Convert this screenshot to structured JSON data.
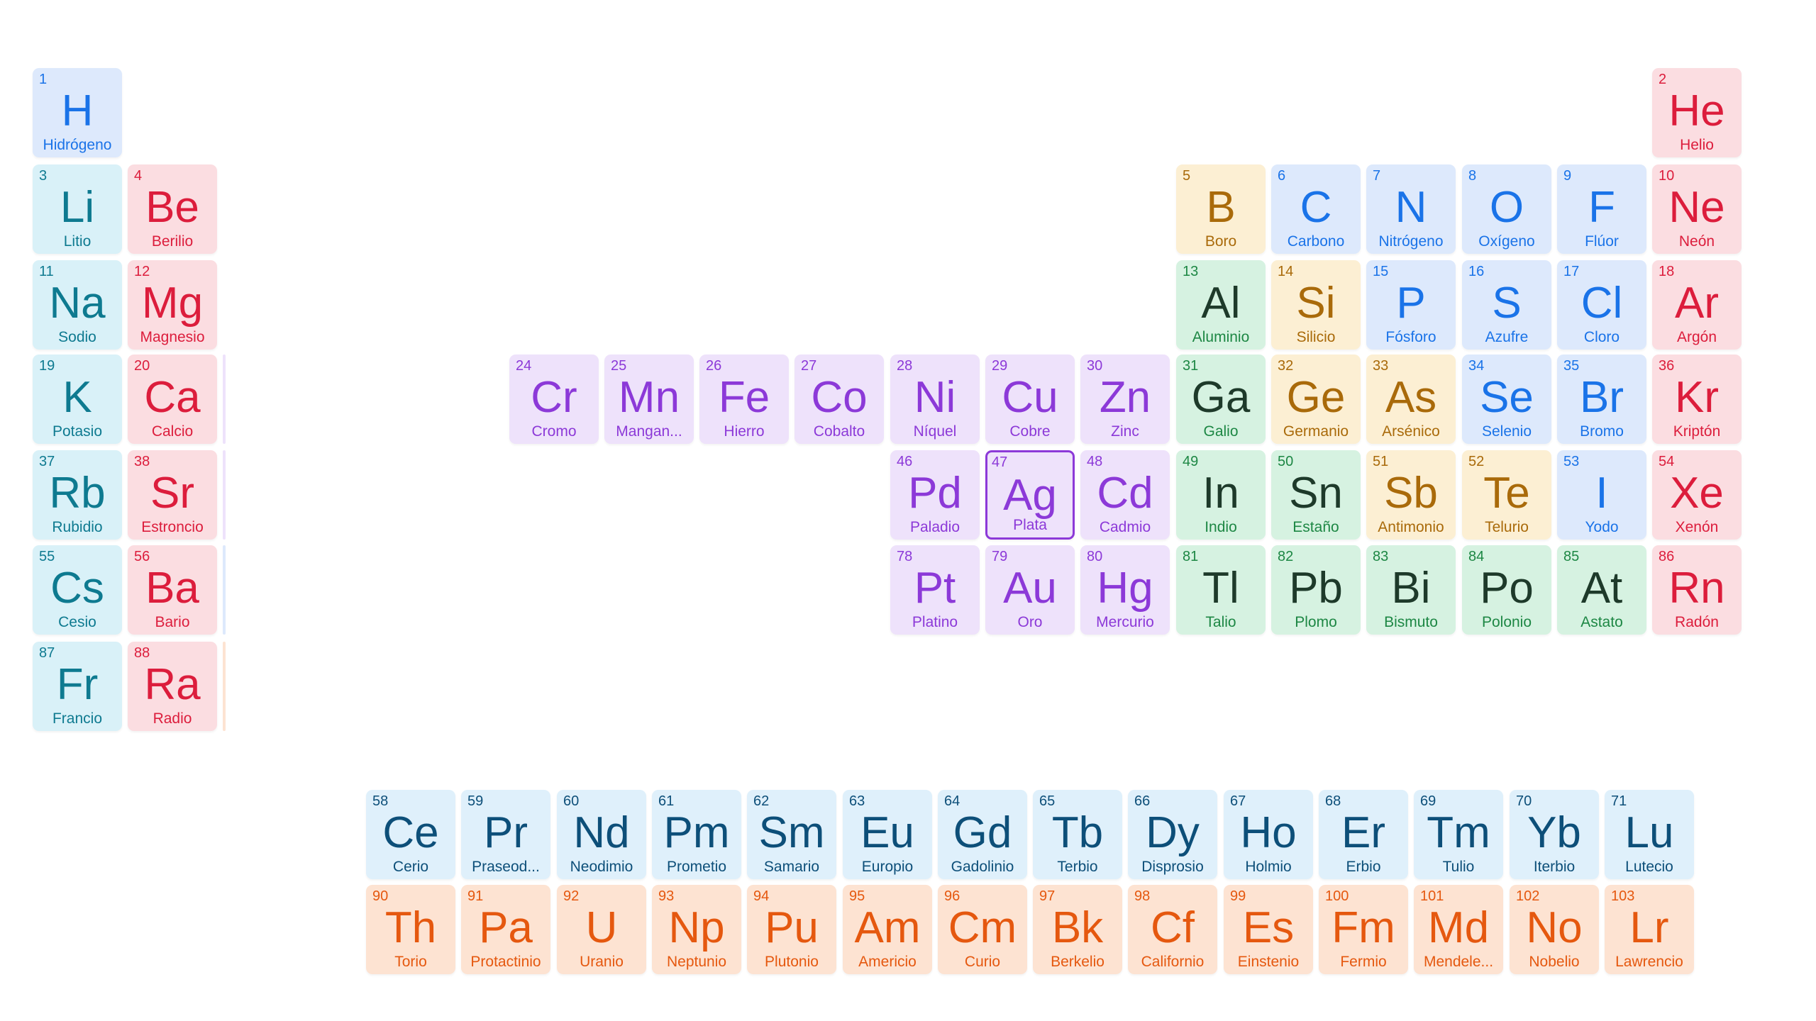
{
  "category_colors": {
    "hydrogen": "#1a73e8",
    "alkali": "#0e7a90",
    "alkaline": "#dc1d3c",
    "transition": "#8c39d8",
    "post": "#1d8744",
    "metalloid": "#a96a0a",
    "nonmetal": "#1a73e8",
    "noble": "#dc1d3c",
    "lanthanide": "#0d4f79",
    "actinide": "#e5580f"
  },
  "selected_element": "Ag",
  "elements": [
    {
      "num": "1",
      "sym": "H",
      "name": "Hidrógeno",
      "cat": "hydrogen",
      "col": 1,
      "row": 1
    },
    {
      "num": "2",
      "sym": "He",
      "name": "Helio",
      "cat": "noble",
      "col": 18,
      "row": 1
    },
    {
      "num": "3",
      "sym": "Li",
      "name": "Litio",
      "cat": "alkali",
      "col": 1,
      "row": 2
    },
    {
      "num": "4",
      "sym": "Be",
      "name": "Berilio",
      "cat": "alkaline",
      "col": 2,
      "row": 2
    },
    {
      "num": "5",
      "sym": "B",
      "name": "Boro",
      "cat": "metalloid",
      "col": 13,
      "row": 2
    },
    {
      "num": "6",
      "sym": "C",
      "name": "Carbono",
      "cat": "nonmetal",
      "col": 14,
      "row": 2
    },
    {
      "num": "7",
      "sym": "N",
      "name": "Nitrógeno",
      "cat": "nonmetal",
      "col": 15,
      "row": 2
    },
    {
      "num": "8",
      "sym": "O",
      "name": "Oxígeno",
      "cat": "nonmetal",
      "col": 16,
      "row": 2
    },
    {
      "num": "9",
      "sym": "F",
      "name": "Flúor",
      "cat": "nonmetal",
      "col": 17,
      "row": 2
    },
    {
      "num": "10",
      "sym": "Ne",
      "name": "Neón",
      "cat": "noble",
      "col": 18,
      "row": 2
    },
    {
      "num": "11",
      "sym": "Na",
      "name": "Sodio",
      "cat": "alkali",
      "col": 1,
      "row": 3
    },
    {
      "num": "12",
      "sym": "Mg",
      "name": "Magnesio",
      "cat": "alkaline",
      "col": 2,
      "row": 3
    },
    {
      "num": "13",
      "sym": "Al",
      "name": "Aluminio",
      "cat": "post",
      "col": 13,
      "row": 3
    },
    {
      "num": "14",
      "sym": "Si",
      "name": "Silicio",
      "cat": "metalloid",
      "col": 14,
      "row": 3
    },
    {
      "num": "15",
      "sym": "P",
      "name": "Fósforo",
      "cat": "nonmetal",
      "col": 15,
      "row": 3
    },
    {
      "num": "16",
      "sym": "S",
      "name": "Azufre",
      "cat": "nonmetal",
      "col": 16,
      "row": 3
    },
    {
      "num": "17",
      "sym": "Cl",
      "name": "Cloro",
      "cat": "nonmetal",
      "col": 17,
      "row": 3
    },
    {
      "num": "18",
      "sym": "Ar",
      "name": "Argón",
      "cat": "noble",
      "col": 18,
      "row": 3
    },
    {
      "num": "19",
      "sym": "K",
      "name": "Potasio",
      "cat": "alkali",
      "col": 1,
      "row": 4
    },
    {
      "num": "20",
      "sym": "Ca",
      "name": "Calcio",
      "cat": "alkaline",
      "col": 2,
      "row": 4
    },
    {
      "num": "24",
      "sym": "Cr",
      "name": "Cromo",
      "cat": "transition",
      "col": 6,
      "row": 4
    },
    {
      "num": "25",
      "sym": "Mn",
      "name": "Mangan...",
      "cat": "transition",
      "col": 7,
      "row": 4
    },
    {
      "num": "26",
      "sym": "Fe",
      "name": "Hierro",
      "cat": "transition",
      "col": 8,
      "row": 4
    },
    {
      "num": "27",
      "sym": "Co",
      "name": "Cobalto",
      "cat": "transition",
      "col": 9,
      "row": 4
    },
    {
      "num": "28",
      "sym": "Ni",
      "name": "Níquel",
      "cat": "transition",
      "col": 10,
      "row": 4
    },
    {
      "num": "29",
      "sym": "Cu",
      "name": "Cobre",
      "cat": "transition",
      "col": 11,
      "row": 4
    },
    {
      "num": "30",
      "sym": "Zn",
      "name": "Zinc",
      "cat": "transition",
      "col": 12,
      "row": 4
    },
    {
      "num": "31",
      "sym": "Ga",
      "name": "Galio",
      "cat": "post",
      "col": 13,
      "row": 4
    },
    {
      "num": "32",
      "sym": "Ge",
      "name": "Germanio",
      "cat": "metalloid",
      "col": 14,
      "row": 4
    },
    {
      "num": "33",
      "sym": "As",
      "name": "Arsénico",
      "cat": "metalloid",
      "col": 15,
      "row": 4
    },
    {
      "num": "34",
      "sym": "Se",
      "name": "Selenio",
      "cat": "nonmetal",
      "col": 16,
      "row": 4
    },
    {
      "num": "35",
      "sym": "Br",
      "name": "Bromo",
      "cat": "nonmetal",
      "col": 17,
      "row": 4
    },
    {
      "num": "36",
      "sym": "Kr",
      "name": "Kriptón",
      "cat": "noble",
      "col": 18,
      "row": 4
    },
    {
      "num": "37",
      "sym": "Rb",
      "name": "Rubidio",
      "cat": "alkali",
      "col": 1,
      "row": 5
    },
    {
      "num": "38",
      "sym": "Sr",
      "name": "Estroncio",
      "cat": "alkaline",
      "col": 2,
      "row": 5
    },
    {
      "num": "46",
      "sym": "Pd",
      "name": "Paladio",
      "cat": "transition",
      "col": 10,
      "row": 5
    },
    {
      "num": "47",
      "sym": "Ag",
      "name": "Plata",
      "cat": "transition",
      "col": 11,
      "row": 5
    },
    {
      "num": "48",
      "sym": "Cd",
      "name": "Cadmio",
      "cat": "transition",
      "col": 12,
      "row": 5
    },
    {
      "num": "49",
      "sym": "In",
      "name": "Indio",
      "cat": "post",
      "col": 13,
      "row": 5
    },
    {
      "num": "50",
      "sym": "Sn",
      "name": "Estaño",
      "cat": "post",
      "col": 14,
      "row": 5
    },
    {
      "num": "51",
      "sym": "Sb",
      "name": "Antimonio",
      "cat": "metalloid",
      "col": 15,
      "row": 5
    },
    {
      "num": "52",
      "sym": "Te",
      "name": "Telurio",
      "cat": "metalloid",
      "col": 16,
      "row": 5
    },
    {
      "num": "53",
      "sym": "I",
      "name": "Yodo",
      "cat": "nonmetal",
      "col": 17,
      "row": 5
    },
    {
      "num": "54",
      "sym": "Xe",
      "name": "Xenón",
      "cat": "noble",
      "col": 18,
      "row": 5
    },
    {
      "num": "55",
      "sym": "Cs",
      "name": "Cesio",
      "cat": "alkali",
      "col": 1,
      "row": 6
    },
    {
      "num": "56",
      "sym": "Ba",
      "name": "Bario",
      "cat": "alkaline",
      "col": 2,
      "row": 6
    },
    {
      "num": "78",
      "sym": "Pt",
      "name": "Platino",
      "cat": "transition",
      "col": 10,
      "row": 6
    },
    {
      "num": "79",
      "sym": "Au",
      "name": "Oro",
      "cat": "transition",
      "col": 11,
      "row": 6
    },
    {
      "num": "80",
      "sym": "Hg",
      "name": "Mercurio",
      "cat": "transition",
      "col": 12,
      "row": 6
    },
    {
      "num": "81",
      "sym": "Tl",
      "name": "Talio",
      "cat": "post",
      "col": 13,
      "row": 6
    },
    {
      "num": "82",
      "sym": "Pb",
      "name": "Plomo",
      "cat": "post",
      "col": 14,
      "row": 6
    },
    {
      "num": "83",
      "sym": "Bi",
      "name": "Bismuto",
      "cat": "post",
      "col": 15,
      "row": 6
    },
    {
      "num": "84",
      "sym": "Po",
      "name": "Polonio",
      "cat": "post",
      "col": 16,
      "row": 6
    },
    {
      "num": "85",
      "sym": "At",
      "name": "Astato",
      "cat": "post",
      "col": 17,
      "row": 6
    },
    {
      "num": "86",
      "sym": "Rn",
      "name": "Radón",
      "cat": "noble",
      "col": 18,
      "row": 6
    },
    {
      "num": "87",
      "sym": "Fr",
      "name": "Francio",
      "cat": "alkali",
      "col": 1,
      "row": 7
    },
    {
      "num": "88",
      "sym": "Ra",
      "name": "Radio",
      "cat": "alkaline",
      "col": 2,
      "row": 7
    },
    {
      "num": "58",
      "sym": "Ce",
      "name": "Cerio",
      "cat": "lanthanide",
      "col": 4.5,
      "row": 9
    },
    {
      "num": "59",
      "sym": "Pr",
      "name": "Praseod...",
      "cat": "lanthanide",
      "col": 5.5,
      "row": 9
    },
    {
      "num": "60",
      "sym": "Nd",
      "name": "Neodimio",
      "cat": "lanthanide",
      "col": 6.5,
      "row": 9
    },
    {
      "num": "61",
      "sym": "Pm",
      "name": "Prometio",
      "cat": "lanthanide",
      "col": 7.5,
      "row": 9
    },
    {
      "num": "62",
      "sym": "Sm",
      "name": "Samario",
      "cat": "lanthanide",
      "col": 8.5,
      "row": 9
    },
    {
      "num": "63",
      "sym": "Eu",
      "name": "Europio",
      "cat": "lanthanide",
      "col": 9.5,
      "row": 9
    },
    {
      "num": "64",
      "sym": "Gd",
      "name": "Gadolinio",
      "cat": "lanthanide",
      "col": 10.5,
      "row": 9
    },
    {
      "num": "65",
      "sym": "Tb",
      "name": "Terbio",
      "cat": "lanthanide",
      "col": 11.5,
      "row": 9
    },
    {
      "num": "66",
      "sym": "Dy",
      "name": "Disprosio",
      "cat": "lanthanide",
      "col": 12.5,
      "row": 9
    },
    {
      "num": "67",
      "sym": "Ho",
      "name": "Holmio",
      "cat": "lanthanide",
      "col": 13.5,
      "row": 9
    },
    {
      "num": "68",
      "sym": "Er",
      "name": "Erbio",
      "cat": "lanthanide",
      "col": 14.5,
      "row": 9
    },
    {
      "num": "69",
      "sym": "Tm",
      "name": "Tulio",
      "cat": "lanthanide",
      "col": 15.5,
      "row": 9
    },
    {
      "num": "70",
      "sym": "Yb",
      "name": "Iterbio",
      "cat": "lanthanide",
      "col": 16.5,
      "row": 9
    },
    {
      "num": "71",
      "sym": "Lu",
      "name": "Lutecio",
      "cat": "lanthanide",
      "col": 17.5,
      "row": 9
    },
    {
      "num": "90",
      "sym": "Th",
      "name": "Torio",
      "cat": "actinide",
      "col": 4.5,
      "row": 10
    },
    {
      "num": "91",
      "sym": "Pa",
      "name": "Protactinio",
      "cat": "actinide",
      "col": 5.5,
      "row": 10
    },
    {
      "num": "92",
      "sym": "U",
      "name": "Uranio",
      "cat": "actinide",
      "col": 6.5,
      "row": 10
    },
    {
      "num": "93",
      "sym": "Np",
      "name": "Neptunio",
      "cat": "actinide",
      "col": 7.5,
      "row": 10
    },
    {
      "num": "94",
      "sym": "Pu",
      "name": "Plutonio",
      "cat": "actinide",
      "col": 8.5,
      "row": 10
    },
    {
      "num": "95",
      "sym": "Am",
      "name": "Americio",
      "cat": "actinide",
      "col": 9.5,
      "row": 10
    },
    {
      "num": "96",
      "sym": "Cm",
      "name": "Curio",
      "cat": "actinide",
      "col": 10.5,
      "row": 10
    },
    {
      "num": "97",
      "sym": "Bk",
      "name": "Berkelio",
      "cat": "actinide",
      "col": 11.5,
      "row": 10
    },
    {
      "num": "98",
      "sym": "Cf",
      "name": "Californio",
      "cat": "actinide",
      "col": 12.5,
      "row": 10
    },
    {
      "num": "99",
      "sym": "Es",
      "name": "Einstenio",
      "cat": "actinide",
      "col": 13.5,
      "row": 10
    },
    {
      "num": "100",
      "sym": "Fm",
      "name": "Fermio",
      "cat": "actinide",
      "col": 14.5,
      "row": 10
    },
    {
      "num": "101",
      "sym": "Md",
      "name": "Mendele...",
      "cat": "actinide",
      "col": 15.5,
      "row": 10
    },
    {
      "num": "102",
      "sym": "No",
      "name": "Nobelio",
      "cat": "actinide",
      "col": 16.5,
      "row": 10
    },
    {
      "num": "103",
      "sym": "Lr",
      "name": "Lawrencio",
      "cat": "actinide",
      "col": 17.5,
      "row": 10
    }
  ]
}
